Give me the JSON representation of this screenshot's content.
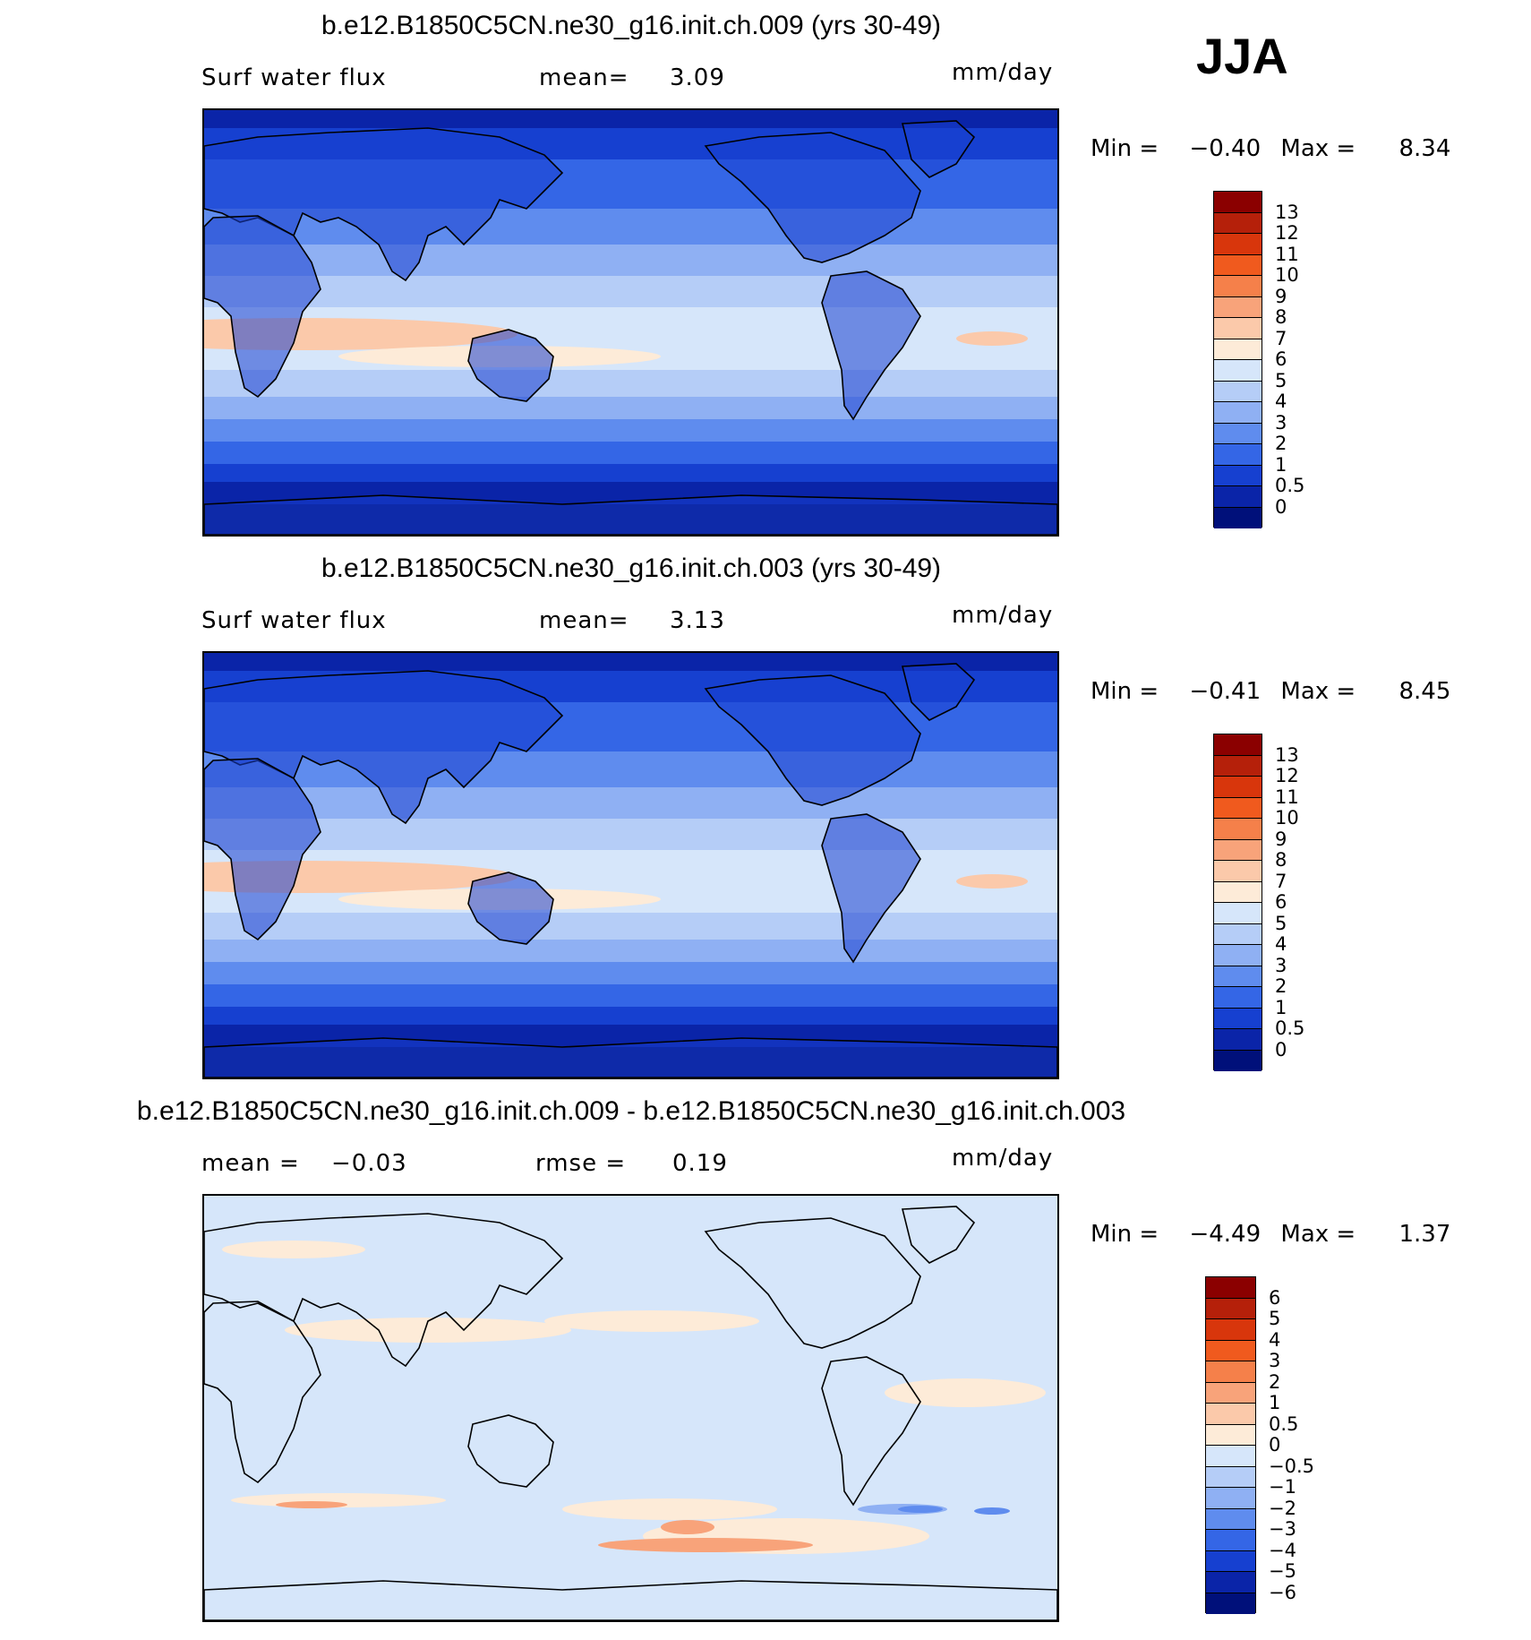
{
  "season": "JJA",
  "panels": [
    {
      "title": "b.e12.B1850C5CN.ne30_g16.init.ch.009 (yrs 30-49)",
      "left_label": "Surf  water  flux",
      "stat_label": "mean=",
      "stat_value": "3.09",
      "stat2_label": "",
      "stat2_value": "",
      "units": "mm/day",
      "min_label": "Min  =",
      "min_value": "−0.40",
      "max_label": "Max  =",
      "max_value": "8.34",
      "colorbar": {
        "levels": [
          "13",
          "12",
          "11",
          "10",
          "9",
          "8",
          "7",
          "6",
          "5",
          "4",
          "3",
          "2",
          "1",
          "0.5",
          "0"
        ],
        "colors": [
          "#8b0000",
          "#b5200a",
          "#d8360c",
          "#f05a1e",
          "#f5804a",
          "#f8a37a",
          "#fbc9aa",
          "#fdebd8",
          "#d6e6fa",
          "#b5cdf7",
          "#8fb0f3",
          "#5f8cee",
          "#3466e6",
          "#1640d0",
          "#0a24a8",
          "#00107a"
        ]
      }
    },
    {
      "title": "b.e12.B1850C5CN.ne30_g16.init.ch.003 (yrs 30-49)",
      "left_label": "Surf  water  flux",
      "stat_label": "mean=",
      "stat_value": "3.13",
      "stat2_label": "",
      "stat2_value": "",
      "units": "mm/day",
      "min_label": "Min  =",
      "min_value": "−0.41",
      "max_label": "Max  =",
      "max_value": "8.45",
      "colorbar": {
        "levels": [
          "13",
          "12",
          "11",
          "10",
          "9",
          "8",
          "7",
          "6",
          "5",
          "4",
          "3",
          "2",
          "1",
          "0.5",
          "0"
        ],
        "colors": [
          "#8b0000",
          "#b5200a",
          "#d8360c",
          "#f05a1e",
          "#f5804a",
          "#f8a37a",
          "#fbc9aa",
          "#fdebd8",
          "#d6e6fa",
          "#b5cdf7",
          "#8fb0f3",
          "#5f8cee",
          "#3466e6",
          "#1640d0",
          "#0a24a8",
          "#00107a"
        ]
      }
    },
    {
      "title": "b.e12.B1850C5CN.ne30_g16.init.ch.009 - b.e12.B1850C5CN.ne30_g16.init.ch.003",
      "left_label": "",
      "stat_label": "mean  =",
      "stat_value": "−0.03",
      "stat2_label": "rmse  =",
      "stat2_value": "0.19",
      "units": "mm/day",
      "min_label": "Min  =",
      "min_value": "−4.49",
      "max_label": "Max  =",
      "max_value": "1.37",
      "colorbar": {
        "levels": [
          "6",
          "5",
          "4",
          "3",
          "2",
          "1",
          "0.5",
          "0",
          "−0.5",
          "−1",
          "−2",
          "−3",
          "−4",
          "−5",
          "−6"
        ],
        "colors": [
          "#8b0000",
          "#b5200a",
          "#d8360c",
          "#f05a1e",
          "#f5804a",
          "#f8a37a",
          "#fbc9aa",
          "#fdebd8",
          "#d6e6fa",
          "#b5cdf7",
          "#8fb0f3",
          "#5f8cee",
          "#3466e6",
          "#1640d0",
          "#0a24a8",
          "#00107a"
        ]
      }
    }
  ]
}
